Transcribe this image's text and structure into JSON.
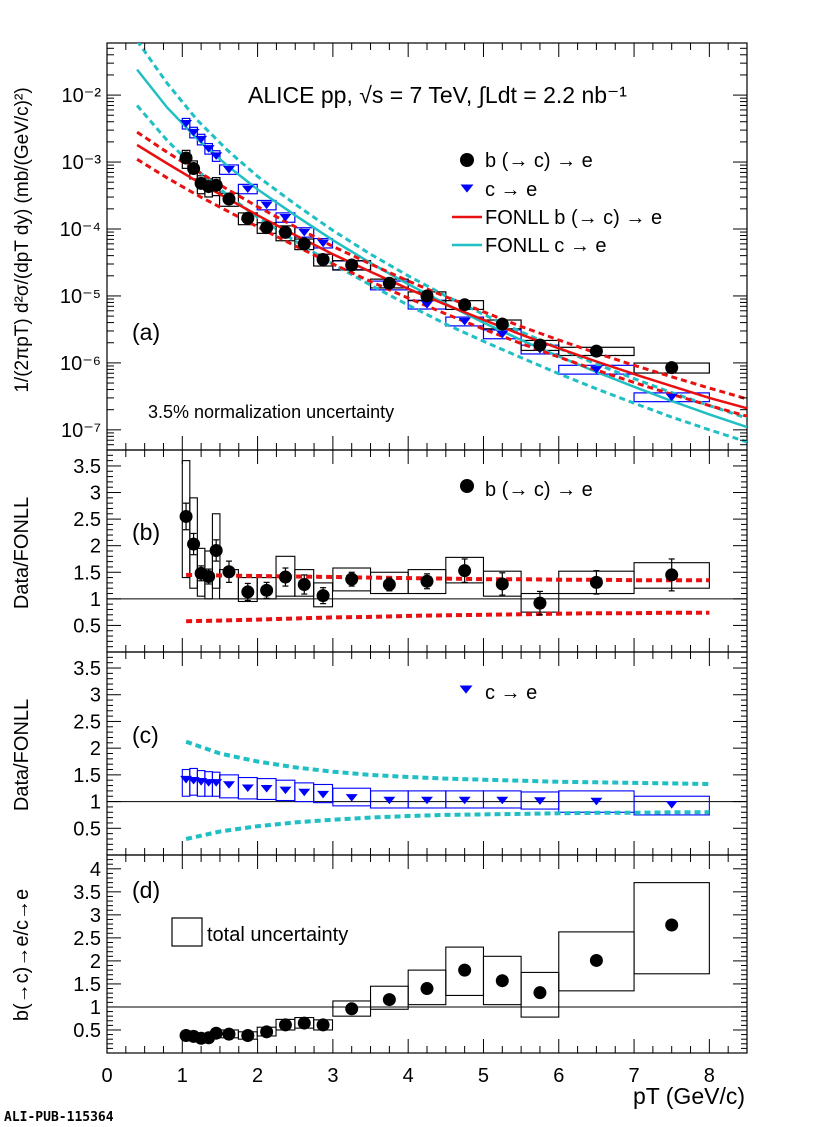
{
  "footer": {
    "publication_id": "ALI-PUB-115364"
  },
  "colors": {
    "data": "#000000",
    "c_marker": "#0000ff",
    "fonll_b": "#e81010",
    "fonll_c": "#1fbfc4",
    "grid": "#000000"
  },
  "chart_data": [
    {
      "panel_label": "(a)",
      "type": "scatter",
      "title": "ALICE pp, √s = 7 TeV, ∫Ldt = 2.2 nb⁻¹",
      "ylabel": "1/(2πpT) d²σ/(dpT dy) (mb/(GeV/c)²)",
      "annotation": "3.5% normalization uncertainty",
      "xlim": [
        0,
        8.5
      ],
      "ylim": [
        5e-08,
        0.06
      ],
      "yscale": "log",
      "yticks": [
        1e-07,
        1e-06,
        1e-05,
        0.0001,
        0.001,
        0.01
      ],
      "ytick_labels": [
        "10⁻⁷",
        "10⁻⁶",
        "10⁻⁵",
        "10⁻⁴",
        "10⁻³",
        "10⁻²"
      ],
      "legend_position": "top-right",
      "series": [
        {
          "name": "b (→ c) → e",
          "marker": "circle",
          "x": [
            1.05,
            1.15,
            1.25,
            1.35,
            1.45,
            1.62,
            1.87,
            2.12,
            2.37,
            2.62,
            2.87,
            3.25,
            3.75,
            4.25,
            4.75,
            5.25,
            5.75,
            6.5,
            7.5
          ],
          "y": [
            0.00115,
            0.0008,
            0.00048,
            0.00043,
            0.00045,
            0.00028,
            0.000145,
            0.000105,
            8.9e-05,
            6e-05,
            3.5e-05,
            2.9e-05,
            1.55e-05,
            1e-05,
            7.4e-06,
            3.8e-06,
            1.85e-06,
            1.5e-06,
            8.5e-07
          ],
          "x_half_width": [
            0.05,
            0.05,
            0.05,
            0.05,
            0.05,
            0.125,
            0.125,
            0.125,
            0.125,
            0.125,
            0.125,
            0.25,
            0.25,
            0.25,
            0.25,
            0.25,
            0.25,
            0.5,
            0.5
          ],
          "sys_rel": [
            0.3,
            0.3,
            0.3,
            0.3,
            0.3,
            0.22,
            0.2,
            0.18,
            0.25,
            0.18,
            0.2,
            0.16,
            0.15,
            0.15,
            0.15,
            0.15,
            0.17,
            0.14,
            0.17
          ]
        },
        {
          "name": "c → e",
          "marker": "triangle-down",
          "x": [
            1.05,
            1.15,
            1.25,
            1.35,
            1.45,
            1.62,
            1.87,
            2.12,
            2.37,
            2.62,
            2.87,
            3.25,
            3.75,
            4.25,
            4.75,
            5.25,
            5.75,
            6.5,
            7.5
          ],
          "y": [
            0.0038,
            0.0028,
            0.0022,
            0.0016,
            0.00125,
            0.00078,
            0.0004,
            0.00023,
            0.00015,
            9e-05,
            6.2e-05,
            2.9e-05,
            1.45e-05,
            7.5e-06,
            4.2e-06,
            2.7e-06,
            1.6e-06,
            8e-07,
            3.1e-07
          ],
          "x_half_width": [
            0.05,
            0.05,
            0.05,
            0.05,
            0.05,
            0.125,
            0.125,
            0.125,
            0.125,
            0.125,
            0.125,
            0.25,
            0.25,
            0.25,
            0.25,
            0.25,
            0.25,
            0.5,
            0.5
          ],
          "sys_rel": [
            0.18,
            0.18,
            0.18,
            0.18,
            0.18,
            0.16,
            0.16,
            0.16,
            0.16,
            0.16,
            0.16,
            0.15,
            0.15,
            0.15,
            0.15,
            0.15,
            0.15,
            0.15,
            0.15
          ]
        },
        {
          "name": "FONLL b (→ c) → e",
          "type": "line",
          "x": [
            0.4,
            0.8,
            1.2,
            1.6,
            2.0,
            2.5,
            3.0,
            3.5,
            4.0,
            4.5,
            5.0,
            5.5,
            6.0,
            6.5,
            7.0,
            7.5,
            8.0,
            8.5
          ],
          "y": [
            0.0018,
            0.00095,
            0.00051,
            0.000285,
            0.00016,
            8.1e-05,
            4.2e-05,
            2.3e-05,
            1.28e-05,
            7.4e-06,
            4.4e-06,
            2.65e-06,
            1.65e-06,
            1.05e-06,
            6.8e-07,
            4.5e-07,
            3e-07,
            2.1e-07
          ],
          "band_upper": [
            0.0028,
            0.0014,
            0.00073,
            0.00039,
            0.000215,
            0.000108,
            5.5e-05,
            3e-05,
            1.67e-05,
            9.7e-06,
            5.8e-06,
            3.5e-06,
            2.2e-06,
            1.4e-06,
            9.2e-07,
            6.2e-07,
            4.2e-07,
            2.9e-07
          ],
          "band_lower": [
            0.0011,
            0.00058,
            0.00032,
            0.000185,
            0.000108,
            5.6e-05,
            3e-05,
            1.65e-05,
            9.3e-06,
            5.4e-06,
            3.2e-06,
            1.95e-06,
            1.22e-06,
            7.8e-07,
            5.1e-07,
            3.4e-07,
            2.3e-07,
            1.6e-07
          ]
        },
        {
          "name": "FONLL c → e",
          "type": "line",
          "x": [
            0.4,
            0.8,
            1.2,
            1.6,
            2.0,
            2.5,
            3.0,
            3.5,
            4.0,
            4.5,
            5.0,
            5.5,
            6.0,
            6.5,
            7.0,
            7.5,
            8.0,
            8.5
          ],
          "y": [
            0.024,
            0.0065,
            0.0022,
            0.00088,
            0.00039,
            0.00016,
            6.8e-05,
            3.1e-05,
            1.5e-05,
            7.6e-06,
            4e-06,
            2.2e-06,
            1.25e-06,
            7.3e-07,
            4.4e-07,
            2.7e-07,
            1.7e-07,
            1.1e-07
          ],
          "band_upper": [
            0.065,
            0.015,
            0.0042,
            0.0015,
            0.00061,
            0.000235,
            9.5e-05,
            4.2e-05,
            2e-05,
            1e-05,
            5.3e-06,
            2.9e-06,
            1.65e-06,
            9.6e-07,
            5.8e-07,
            3.6e-07,
            2.3e-07,
            1.5e-07
          ],
          "band_lower": [
            0.007,
            0.0021,
            0.00075,
            0.00032,
            0.00015,
            6.6e-05,
            3e-05,
            1.45e-05,
            7.3e-06,
            3.8e-06,
            2.1e-06,
            1.2e-06,
            6.9e-07,
            4.1e-07,
            2.5e-07,
            1.55e-07,
            1e-07,
            6.6e-08
          ]
        }
      ]
    },
    {
      "panel_label": "(b)",
      "type": "scatter",
      "ylabel": "Data/FONLL",
      "xlim": [
        0,
        8.5
      ],
      "ylim": [
        0,
        3.8
      ],
      "yticks": [
        0.5,
        1,
        1.5,
        2,
        2.5,
        3,
        3.5
      ],
      "ytick_labels": [
        "0.5",
        "1",
        "1.5",
        "2",
        "2.5",
        "3",
        "3.5"
      ],
      "reference_line": 1,
      "series": [
        {
          "name": "b (→ c) → e",
          "marker": "circle",
          "x": [
            1.05,
            1.15,
            1.25,
            1.35,
            1.45,
            1.62,
            1.87,
            2.12,
            2.37,
            2.62,
            2.87,
            3.25,
            3.75,
            4.25,
            4.75,
            5.25,
            5.75,
            6.5,
            7.5
          ],
          "y": [
            2.55,
            2.03,
            1.48,
            1.42,
            1.91,
            1.51,
            1.13,
            1.16,
            1.41,
            1.27,
            1.06,
            1.37,
            1.27,
            1.33,
            1.53,
            1.28,
            0.92,
            1.31,
            1.45
          ],
          "stat_err": [
            0.25,
            0.2,
            0.14,
            0.14,
            0.2,
            0.2,
            0.16,
            0.15,
            0.17,
            0.18,
            0.15,
            0.13,
            0.12,
            0.14,
            0.22,
            0.21,
            0.22,
            0.22,
            0.3
          ],
          "x_half_width": [
            0.05,
            0.05,
            0.05,
            0.05,
            0.05,
            0.125,
            0.125,
            0.125,
            0.125,
            0.125,
            0.125,
            0.25,
            0.25,
            0.25,
            0.25,
            0.25,
            0.25,
            0.5,
            0.5
          ],
          "sys_low": [
            1.4,
            1.2,
            1.05,
            1.0,
            1.2,
            1.0,
            0.95,
            1.0,
            1.05,
            1.05,
            0.85,
            1.15,
            1.1,
            1.1,
            1.3,
            1.05,
            0.75,
            1.1,
            1.2
          ],
          "sys_high": [
            3.6,
            2.9,
            1.95,
            1.9,
            2.6,
            1.55,
            1.4,
            1.4,
            1.8,
            1.55,
            1.3,
            1.58,
            1.5,
            1.55,
            1.78,
            1.52,
            1.1,
            1.52,
            1.68
          ]
        },
        {
          "name": "FONLL b uncertainty band",
          "type": "line",
          "x": [
            1.05,
            1.5,
            2.0,
            2.5,
            3.0,
            3.5,
            4.0,
            4.5,
            5.0,
            5.5,
            6.0,
            6.5,
            7.0,
            7.5,
            8.0
          ],
          "upper": [
            1.45,
            1.44,
            1.43,
            1.42,
            1.41,
            1.4,
            1.39,
            1.38,
            1.37,
            1.37,
            1.36,
            1.36,
            1.35,
            1.35,
            1.35
          ],
          "lower": [
            0.58,
            0.59,
            0.61,
            0.63,
            0.65,
            0.66,
            0.68,
            0.69,
            0.7,
            0.71,
            0.72,
            0.73,
            0.73,
            0.74,
            0.74
          ]
        }
      ]
    },
    {
      "panel_label": "(c)",
      "type": "scatter",
      "ylabel": "Data/FONLL",
      "xlim": [
        0,
        8.5
      ],
      "ylim": [
        0,
        3.8
      ],
      "yticks": [
        0.5,
        1,
        1.5,
        2,
        2.5,
        3,
        3.5
      ],
      "ytick_labels": [
        "0.5",
        "1",
        "1.5",
        "2",
        "2.5",
        "3",
        "3.5"
      ],
      "reference_line": 1,
      "series": [
        {
          "name": "c → e",
          "marker": "triangle-down",
          "x": [
            1.05,
            1.15,
            1.25,
            1.35,
            1.45,
            1.62,
            1.87,
            2.12,
            2.37,
            2.62,
            2.87,
            3.25,
            3.75,
            4.25,
            4.75,
            5.25,
            5.75,
            6.5,
            7.5
          ],
          "y": [
            1.42,
            1.4,
            1.38,
            1.36,
            1.36,
            1.32,
            1.26,
            1.25,
            1.22,
            1.18,
            1.14,
            1.08,
            1.03,
            1.03,
            1.03,
            1.03,
            1.02,
            1.01,
            0.95
          ],
          "x_half_width": [
            0.05,
            0.05,
            0.05,
            0.05,
            0.05,
            0.125,
            0.125,
            0.125,
            0.125,
            0.125,
            0.125,
            0.25,
            0.25,
            0.25,
            0.25,
            0.25,
            0.25,
            0.5,
            0.5
          ],
          "sys_low": [
            1.1,
            1.12,
            1.1,
            1.1,
            1.1,
            1.07,
            1.05,
            1.04,
            1.02,
            1.0,
            0.98,
            0.92,
            0.88,
            0.88,
            0.88,
            0.88,
            0.86,
            0.8,
            0.75
          ],
          "sys_high": [
            1.6,
            1.62,
            1.58,
            1.56,
            1.55,
            1.5,
            1.45,
            1.43,
            1.4,
            1.35,
            1.32,
            1.25,
            1.2,
            1.2,
            1.2,
            1.2,
            1.18,
            1.2,
            1.1
          ]
        },
        {
          "name": "FONLL c uncertainty band",
          "type": "line",
          "x": [
            1.05,
            1.5,
            2.0,
            2.5,
            3.0,
            3.5,
            4.0,
            4.5,
            5.0,
            5.5,
            6.0,
            6.5,
            7.0,
            7.5,
            8.0
          ],
          "upper": [
            2.12,
            1.9,
            1.75,
            1.64,
            1.56,
            1.5,
            1.46,
            1.43,
            1.41,
            1.39,
            1.37,
            1.36,
            1.35,
            1.34,
            1.33
          ],
          "lower": [
            0.3,
            0.44,
            0.54,
            0.61,
            0.66,
            0.7,
            0.73,
            0.75,
            0.76,
            0.77,
            0.78,
            0.79,
            0.79,
            0.8,
            0.8
          ]
        }
      ]
    },
    {
      "panel_label": "(d)",
      "type": "scatter",
      "ylabel": "b(→c)→e/c→e",
      "xlabel": "pT (GeV/c)",
      "legend": [
        "total uncertainty"
      ],
      "xlim": [
        0,
        8.5
      ],
      "ylim": [
        0,
        4.3
      ],
      "xticks": [
        0,
        1,
        2,
        3,
        4,
        5,
        6,
        7,
        8
      ],
      "xtick_labels": [
        "0",
        "1",
        "2",
        "3",
        "4",
        "5",
        "6",
        "7",
        "8"
      ],
      "yticks": [
        0.5,
        1,
        1.5,
        2,
        2.5,
        3,
        3.5,
        4
      ],
      "ytick_labels": [
        "0.5",
        "1",
        "1.5",
        "2",
        "2.5",
        "3",
        "3.5",
        "4"
      ],
      "reference_line": 1,
      "series": [
        {
          "name": "b(→c)→e/c→e",
          "marker": "circle",
          "x": [
            1.05,
            1.15,
            1.25,
            1.35,
            1.45,
            1.62,
            1.87,
            2.12,
            2.37,
            2.62,
            2.87,
            3.25,
            3.75,
            4.25,
            4.75,
            5.25,
            5.75,
            6.5,
            7.5
          ],
          "y": [
            0.38,
            0.36,
            0.32,
            0.33,
            0.43,
            0.41,
            0.38,
            0.46,
            0.61,
            0.65,
            0.61,
            0.96,
            1.16,
            1.4,
            1.8,
            1.57,
            1.31,
            2.01,
            2.78
          ],
          "x_half_width": [
            0.05,
            0.05,
            0.05,
            0.05,
            0.05,
            0.125,
            0.125,
            0.125,
            0.125,
            0.125,
            0.125,
            0.25,
            0.25,
            0.25,
            0.25,
            0.25,
            0.25,
            0.5,
            0.5
          ],
          "sys_low": [
            0.28,
            0.28,
            0.25,
            0.26,
            0.34,
            0.33,
            0.3,
            0.37,
            0.5,
            0.54,
            0.5,
            0.8,
            0.95,
            1.05,
            1.25,
            1.05,
            0.78,
            1.35,
            1.72
          ],
          "sys_high": [
            0.48,
            0.46,
            0.4,
            0.42,
            0.52,
            0.5,
            0.46,
            0.56,
            0.73,
            0.77,
            0.72,
            1.13,
            1.45,
            1.8,
            2.3,
            2.1,
            1.75,
            2.63,
            3.7
          ]
        }
      ]
    }
  ]
}
